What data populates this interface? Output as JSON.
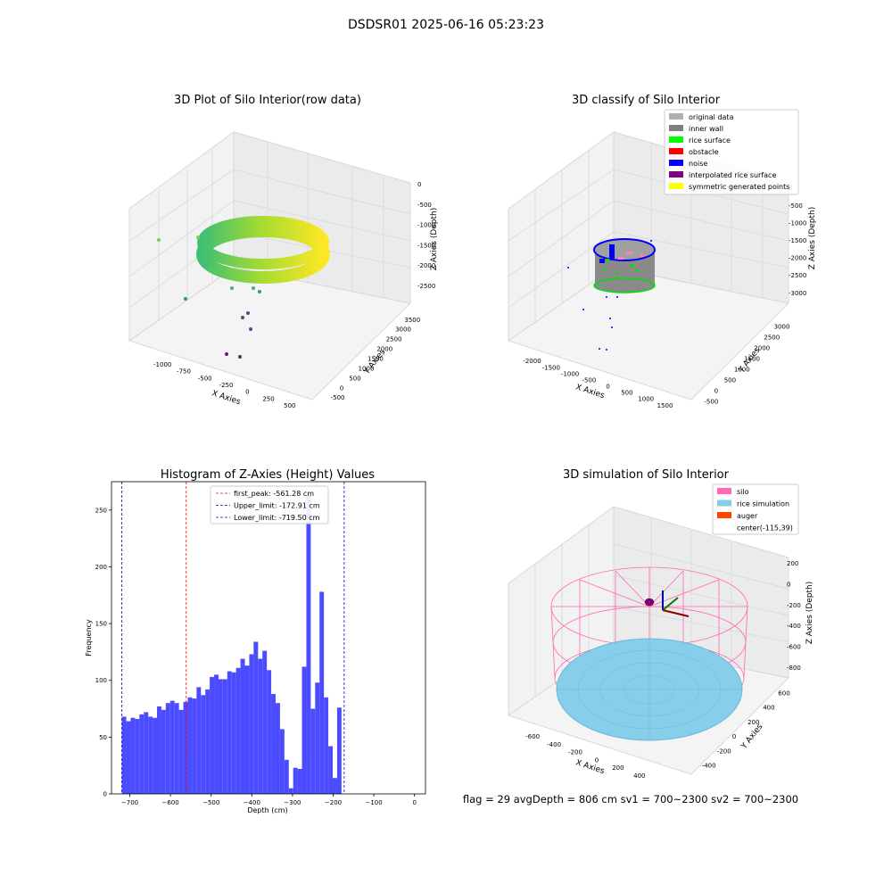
{
  "figure": {
    "suptitle": "DSDSR01 2025-06-16 05:23:23",
    "status_line": "flag = 29  avgDepth = 806 cm  sv1 = 700~2300  sv2 = 700~2300"
  },
  "colors": {
    "hist_bar": "#4b4bff",
    "first_peak": "#ff0000",
    "limit_lines": "#0000cc",
    "silo": "#ff69b4",
    "rice_simulation": "#87ceeb",
    "auger": "#ff4500",
    "inner_wall": "#808080",
    "rice_surface": "#00ff00",
    "noise": "#0000ff"
  },
  "chart_data": [
    {
      "type": "scatter3d",
      "title": "3D Plot of Silo Interior(row data)",
      "xlabel": "X Axies",
      "ylabel": "Y Axies",
      "zlabel": "Z Axies (Depth)",
      "x_ticks": [
        "-1000",
        "-750",
        "-500",
        "-250",
        "0",
        "250",
        "500"
      ],
      "y_ticks": [
        "-500",
        "0",
        "500",
        "1000",
        "1500",
        "2000",
        "2500",
        "3000",
        "3500"
      ],
      "z_ticks": [
        "0",
        "-500",
        "-1000",
        "-1500",
        "-2000",
        "-2500"
      ],
      "xlim": [
        -1100,
        550
      ],
      "ylim": [
        -600,
        3700
      ],
      "zlim": [
        -2800,
        150
      ],
      "colormap": "viridis",
      "description_points": "ring of points around z≈-1000 to -2000 plus scattered outliers"
    },
    {
      "type": "scatter3d",
      "title": "3D classify of Silo Interior",
      "xlabel": "X Axies",
      "ylabel": "Y Axies",
      "zlabel": "Z Axies (Depth)",
      "x_ticks": [
        "-2000",
        "-1500",
        "-1000",
        "-500",
        "0",
        "500",
        "1000",
        "1500"
      ],
      "y_ticks": [
        "-500",
        "0",
        "500",
        "1000",
        "1500",
        "2000",
        "2500",
        "3000"
      ],
      "z_ticks": [
        "0",
        "-500",
        "-1000",
        "-1500",
        "-2000",
        "-2500",
        "-3000"
      ],
      "legend": [
        {
          "label": "original data",
          "color": "#b0b0b0"
        },
        {
          "label": "inner wall",
          "color": "#808080"
        },
        {
          "label": "rice surface",
          "color": "#00ff00"
        },
        {
          "label": "obstacle",
          "color": "#ff0000"
        },
        {
          "label": "noise",
          "color": "#0000ff"
        },
        {
          "label": "interpolated rice surface",
          "color": "#800080"
        },
        {
          "label": "symmetric generated points",
          "color": "#ffff00"
        }
      ]
    },
    {
      "type": "bar",
      "title": "Histogram of Z-Axies (Height) Values",
      "xlabel": "Depth (cm)",
      "ylabel": "Frequency",
      "xlim": [
        -745,
        27
      ],
      "ylim": [
        0,
        275
      ],
      "x_ticks": [
        -700,
        -600,
        -500,
        -400,
        -300,
        -200,
        -100,
        0
      ],
      "y_ticks": [
        0,
        50,
        100,
        150,
        200,
        250
      ],
      "bin_start": -719.5,
      "bin_width": 10.8,
      "values": [
        68,
        64,
        67,
        66,
        70,
        72,
        68,
        67,
        77,
        74,
        80,
        82,
        80,
        74,
        81,
        85,
        84,
        94,
        87,
        92,
        103,
        105,
        101,
        101,
        108,
        107,
        111,
        119,
        113,
        123,
        134,
        119,
        126,
        109,
        88,
        80,
        57,
        30,
        5,
        23,
        22,
        112,
        263,
        75,
        98,
        178,
        85,
        42,
        14,
        76
      ],
      "vlines": [
        {
          "label": "first_peak: -561.28 cm",
          "x": -561.28,
          "color": "#ff0000"
        },
        {
          "label": "Upper_limit: -172.91 cm",
          "x": -172.91,
          "color": "#0000cc"
        },
        {
          "label": "Lower_limit: -719.50 cm",
          "x": -719.5,
          "color": "#0000cc"
        }
      ]
    },
    {
      "type": "surface3d",
      "title": "3D simulation of Silo Interior",
      "xlabel": "X Axies",
      "ylabel": "Y Axies",
      "zlabel": "Z Axies (Depth)",
      "x_ticks": [
        "-600",
        "-400",
        "-200",
        "0",
        "200",
        "400"
      ],
      "y_ticks": [
        "-400",
        "-200",
        "0",
        "200",
        "400",
        "600"
      ],
      "z_ticks": [
        "200",
        "0",
        "-200",
        "-400",
        "-600",
        "-800"
      ],
      "legend": [
        {
          "label": "silo",
          "color": "#ff69b4"
        },
        {
          "label": "rice simulation",
          "color": "#87ceeb"
        },
        {
          "label": "auger",
          "color": "#ff4500"
        },
        {
          "label": "center(-115,39)",
          "color": ""
        }
      ]
    }
  ]
}
